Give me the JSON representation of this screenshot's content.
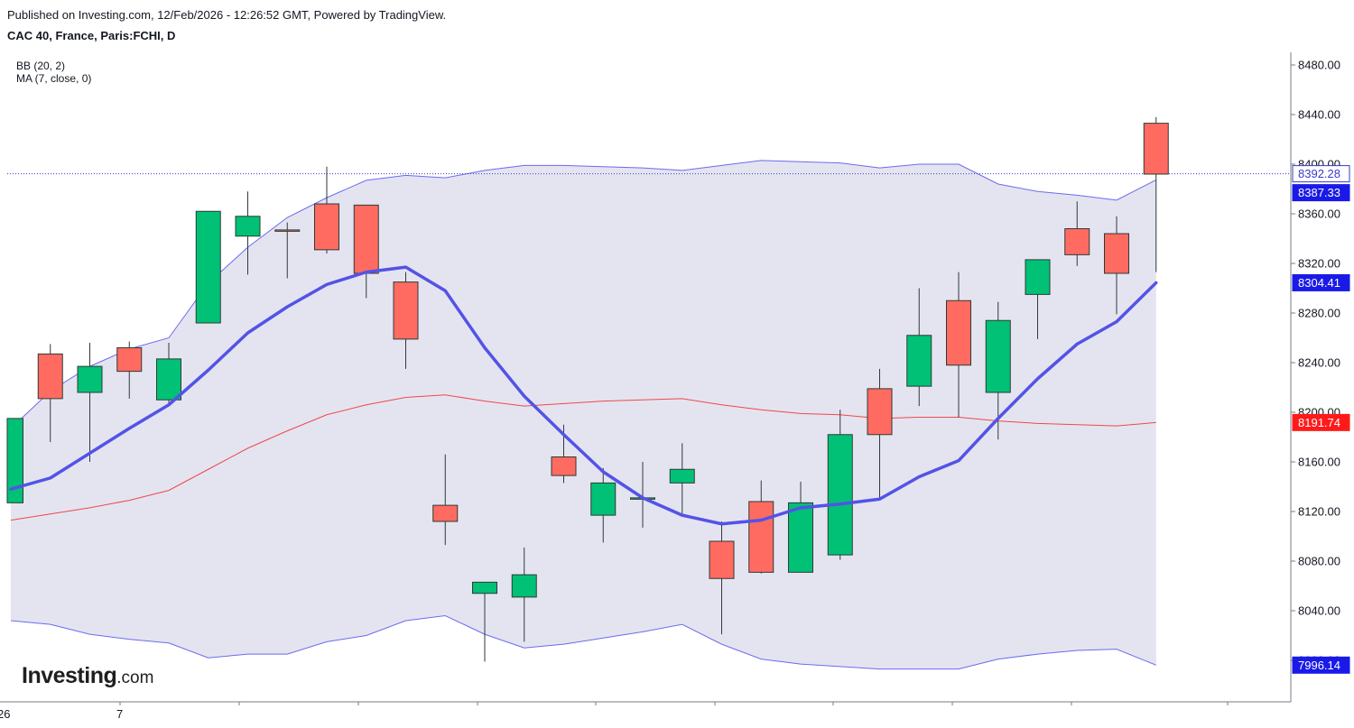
{
  "header": {
    "published": "Published on Investing.com, 12/Feb/2026 - 12:26:52 GMT, Powered by TradingView.",
    "symbol": "CAC 40, France, Paris:FCHI, D"
  },
  "indicators": {
    "bb_label": "BB (20, 2)",
    "ma_label": "MA (7, close, 0)"
  },
  "logo": {
    "main": "Investing",
    "suffix": ".com"
  },
  "colors": {
    "up": "#00c176",
    "down": "#ff6b61",
    "wick": "#2e3a36",
    "ma": "#5353e6",
    "bb_band": "#6b6bf0",
    "bb_basis": "#ef4848",
    "bb_fill": "#e4e4f1",
    "price_line": "#3a3acb"
  },
  "chart_data": {
    "type": "candlestick",
    "y_ticks": [
      "8480.00",
      "8440.00",
      "8400.00",
      "8360.00",
      "8320.00",
      "8280.00",
      "8240.00",
      "8200.00",
      "8160.00",
      "8120.00",
      "8080.00",
      "8040.00",
      "8000.00"
    ],
    "x_tick_labels": [
      "26",
      "7"
    ],
    "price_tags": [
      {
        "label": "8392.28",
        "value": 8392.28,
        "bg": "#ffffff",
        "fg": "#3a3acb",
        "border": "#3a3acb"
      },
      {
        "label": "8387.33",
        "value": 8387.33,
        "bg": "#1a1ae8",
        "fg": "#ffffff"
      },
      {
        "label": "8304.41",
        "value": 8304.41,
        "bg": "#1a1ae8",
        "fg": "#ffffff"
      },
      {
        "label": "8191.74",
        "value": 8191.74,
        "bg": "#ff1a1a",
        "fg": "#ffffff"
      },
      {
        "label": "7996.14",
        "value": 7996.14,
        "bg": "#1a1ae8",
        "fg": "#ffffff"
      }
    ],
    "last_price": 8392.28,
    "candles": [
      {
        "o": 8127,
        "h": 8195,
        "l": 8127,
        "c": 8195
      },
      {
        "o": 8247,
        "h": 8255,
        "l": 8176,
        "c": 8211
      },
      {
        "o": 8216,
        "h": 8256,
        "l": 8160,
        "c": 8237
      },
      {
        "o": 8252,
        "h": 8257,
        "l": 8211,
        "c": 8233
      },
      {
        "o": 8210,
        "h": 8256,
        "l": 8207,
        "c": 8243
      },
      {
        "o": 8272,
        "h": 8362,
        "l": 8272,
        "c": 8362
      },
      {
        "o": 8342,
        "h": 8378,
        "l": 8311,
        "c": 8358
      },
      {
        "o": 8347,
        "h": 8353,
        "l": 8308,
        "c": 8346
      },
      {
        "o": 8368,
        "h": 8398,
        "l": 8328,
        "c": 8331
      },
      {
        "o": 8367,
        "h": 8367,
        "l": 8292,
        "c": 8312
      },
      {
        "o": 8305,
        "h": 8313,
        "l": 8235,
        "c": 8259
      },
      {
        "o": 8125,
        "h": 8166,
        "l": 8093,
        "c": 8112
      },
      {
        "o": 8054,
        "h": 8063,
        "l": 7999,
        "c": 8063
      },
      {
        "o": 8051,
        "h": 8091,
        "l": 8015,
        "c": 8069
      },
      {
        "o": 8164,
        "h": 8190,
        "l": 8143,
        "c": 8149
      },
      {
        "o": 8117,
        "h": 8155,
        "l": 8095,
        "c": 8143
      },
      {
        "o": 8130,
        "h": 8160,
        "l": 8107,
        "c": 8131
      },
      {
        "o": 8143,
        "h": 8175,
        "l": 8117,
        "c": 8154
      },
      {
        "o": 8096,
        "h": 8112,
        "l": 8021,
        "c": 8066
      },
      {
        "o": 8128,
        "h": 8145,
        "l": 8070,
        "c": 8071
      },
      {
        "o": 8071,
        "h": 8144,
        "l": 8071,
        "c": 8127
      },
      {
        "o": 8085,
        "h": 8202,
        "l": 8081,
        "c": 8182
      },
      {
        "o": 8219,
        "h": 8235,
        "l": 8131,
        "c": 8182
      },
      {
        "o": 8221,
        "h": 8300,
        "l": 8205,
        "c": 8262
      },
      {
        "o": 8290,
        "h": 8313,
        "l": 8196,
        "c": 8238
      },
      {
        "o": 8216,
        "h": 8289,
        "l": 8178,
        "c": 8274
      },
      {
        "o": 8295,
        "h": 8323,
        "l": 8259,
        "c": 8323
      },
      {
        "o": 8348,
        "h": 8370,
        "l": 8318,
        "c": 8327
      },
      {
        "o": 8344,
        "h": 8358,
        "l": 8279,
        "c": 8312
      },
      {
        "o": 8433,
        "h": 8438,
        "l": 8313,
        "c": 8392
      }
    ],
    "ma7": [
      8138,
      8147,
      8167,
      8187,
      8206,
      8234,
      8264,
      8285,
      8303,
      8313,
      8317,
      8298,
      8252,
      8213,
      8182,
      8152,
      8131,
      8117,
      8110,
      8113,
      8123,
      8126,
      8130,
      8148,
      8161,
      8195,
      8227,
      8255,
      8273,
      8304.41
    ],
    "bb_upper": [
      8187,
      8217,
      8237,
      8251,
      8260,
      8304,
      8333,
      8357,
      8373,
      8387,
      8391,
      8389,
      8395,
      8399,
      8399,
      8398,
      8397,
      8395,
      8399,
      8403,
      8402,
      8401,
      8397,
      8400,
      8400,
      8384,
      8378,
      8375,
      8371,
      8387.33
    ],
    "bb_basis": [
      8113,
      8118,
      8123,
      8129,
      8137,
      8154,
      8171,
      8185,
      8198,
      8206,
      8212,
      8214,
      8209,
      8205,
      8207,
      8209,
      8210,
      8211,
      8206,
      8202,
      8199,
      8198,
      8195,
      8196,
      8196,
      8193,
      8191,
      8190,
      8189,
      8191.74
    ],
    "bb_lower": [
      8032,
      8029,
      8021,
      8017,
      8014,
      8002,
      8005,
      8005,
      8015,
      8020,
      8032,
      8036,
      8021,
      8010,
      8013,
      8018,
      8023,
      8029,
      8013,
      8001,
      7997,
      7995,
      7993,
      7993,
      7993,
      8001,
      8005,
      8008,
      8009,
      7996.14
    ]
  }
}
